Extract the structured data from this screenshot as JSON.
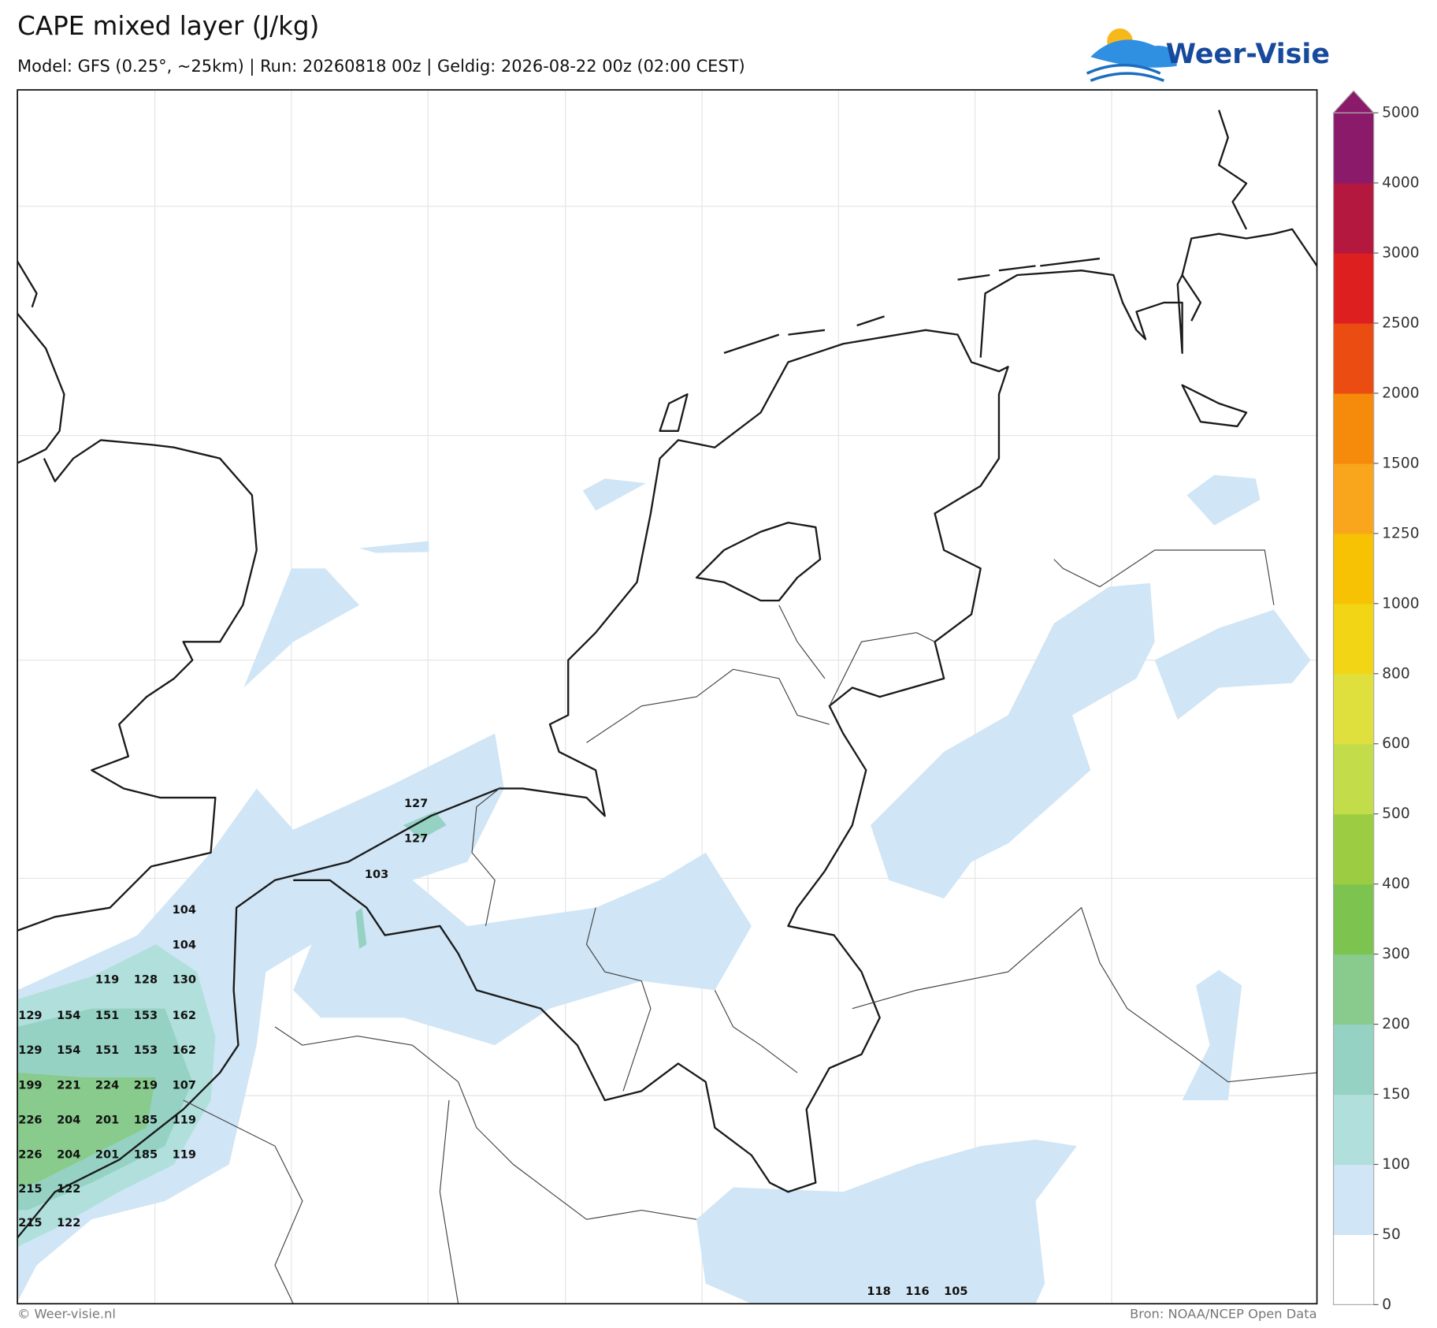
{
  "header": {
    "title": "CAPE mixed layer (J/kg)",
    "subtitle": "Model: GFS (0.25°, ~25km)  |  Run: 20260818 00z  |  Geldig: 2026-08-22 00z (02:00 CEST)",
    "logo": "Weer-Visie"
  },
  "colorbar": {
    "levels": [
      0,
      50,
      100,
      150,
      200,
      300,
      400,
      500,
      600,
      800,
      1000,
      1250,
      1500,
      2000,
      2500,
      3000,
      4000,
      5000
    ],
    "colors": [
      "#ffffff",
      "#d0e5f5",
      "#b1e0dc",
      "#96d2c4",
      "#88cb8c",
      "#7dc34f",
      "#9ccc42",
      "#c3dc4a",
      "#dfe03e",
      "#f2d615",
      "#f8c204",
      "#f9a61c",
      "#f68a0a",
      "#ea4c12",
      "#dd1f1f",
      "#b5183e",
      "#8b1a6b"
    ]
  },
  "point_labels": [
    127,
    127,
    103,
    104,
    104,
    119,
    128,
    130,
    129,
    154,
    151,
    153,
    162,
    129,
    154,
    151,
    153,
    162,
    199,
    221,
    224,
    219,
    107,
    226,
    204,
    201,
    185,
    119,
    226,
    204,
    201,
    185,
    119,
    215,
    122,
    215,
    122,
    118,
    116,
    105
  ],
  "footer": {
    "left": "© Weer-visie.nl",
    "right": "Bron: NOAA/NCEP Open Data"
  }
}
